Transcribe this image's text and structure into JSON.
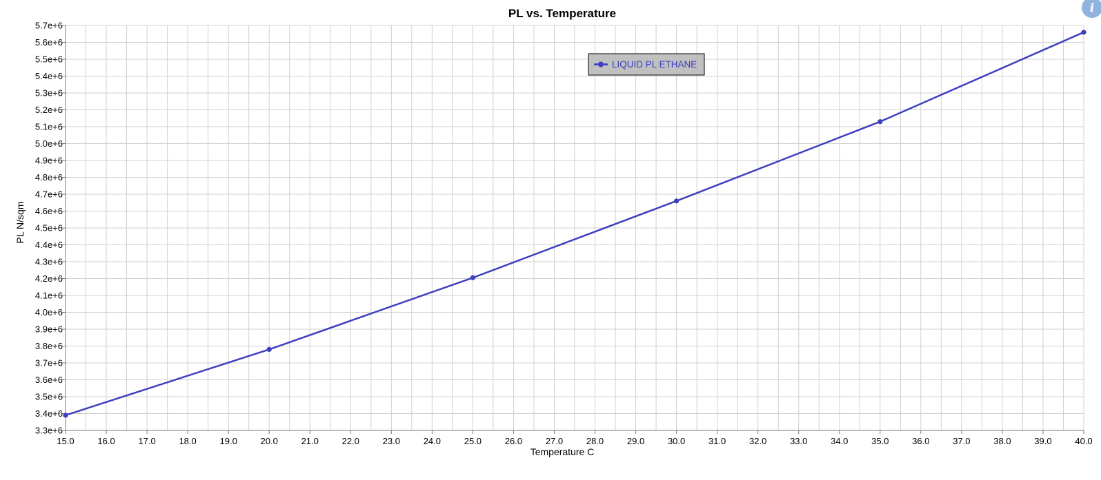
{
  "colors": {
    "series": "#3f3fbf",
    "grid": "#d0d0d0",
    "axis": "#7a7a7a",
    "legend_bg": "#c0c0c0",
    "info_icon": "#8fb3dd"
  },
  "icons": {
    "info": "info-icon"
  },
  "info_glyph": "i",
  "chart_data": {
    "type": "line",
    "title": "PL vs. Temperature",
    "xlabel": "Temperature C",
    "ylabel": "PL N/sqm",
    "xlim": [
      15.0,
      40.0
    ],
    "ylim": [
      3300000,
      5700000
    ],
    "x_ticks": [
      "15.0",
      "16.0",
      "17.0",
      "18.0",
      "19.0",
      "20.0",
      "21.0",
      "22.0",
      "23.0",
      "24.0",
      "25.0",
      "26.0",
      "27.0",
      "28.0",
      "29.0",
      "30.0",
      "31.0",
      "32.0",
      "33.0",
      "34.0",
      "35.0",
      "36.0",
      "37.0",
      "38.0",
      "39.0",
      "40.0"
    ],
    "y_ticks": [
      "3.3e+6",
      "3.4e+6",
      "3.5e+6",
      "3.6e+6",
      "3.7e+6",
      "3.8e+6",
      "3.9e+6",
      "4.0e+6",
      "4.1e+6",
      "4.2e+6",
      "4.3e+6",
      "4.4e+6",
      "4.5e+6",
      "4.6e+6",
      "4.7e+6",
      "4.8e+6",
      "4.9e+6",
      "5.0e+6",
      "5.1e+6",
      "5.2e+6",
      "5.3e+6",
      "5.4e+6",
      "5.5e+6",
      "5.6e+6",
      "5.7e+6"
    ],
    "grid": true,
    "legend_position": "top-center",
    "series": [
      {
        "name": "LIQUID PL ETHANE",
        "x": [
          15.0,
          20.0,
          25.0,
          30.0,
          35.0,
          40.0
        ],
        "y": [
          3390000,
          3780000,
          4205000,
          4660000,
          5130000,
          5660000
        ]
      }
    ]
  }
}
